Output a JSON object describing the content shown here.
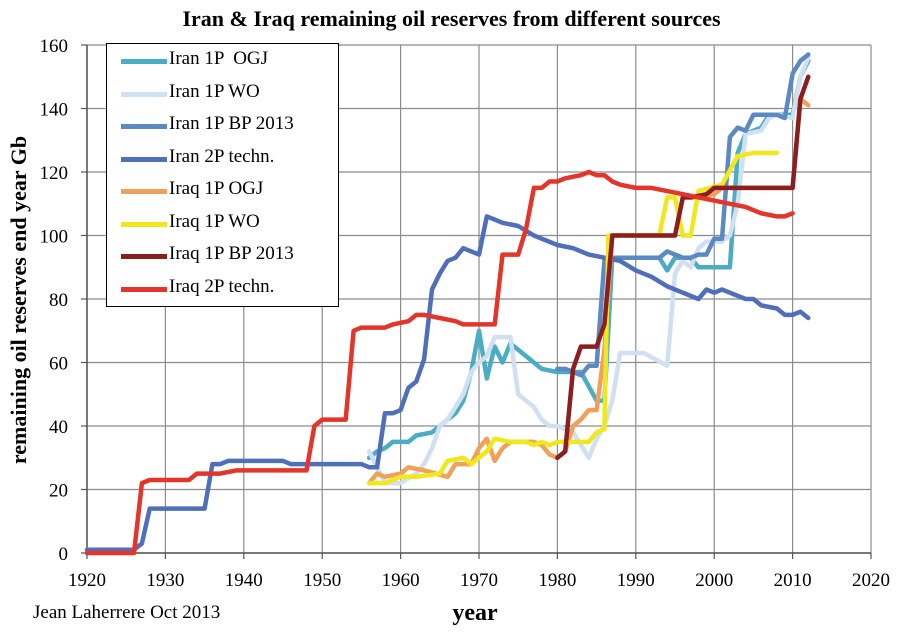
{
  "chart_data": {
    "type": "line",
    "title": "Iran & Iraq remaining oil reserves from different sources",
    "xlabel": "year",
    "ylabel": "remaining oil reserves  end year Gb",
    "xlim": [
      1920,
      2020
    ],
    "ylim": [
      0,
      160
    ],
    "x_ticks": [
      "1920",
      "1930",
      "1940",
      "1950",
      "1960",
      "1970",
      "1980",
      "1990",
      "2000",
      "2010",
      "2020"
    ],
    "y_ticks": [
      "0",
      "20",
      "40",
      "60",
      "80",
      "100",
      "120",
      "140",
      "160"
    ],
    "grid": true,
    "legend_position": "top-left",
    "series": [
      {
        "name": "Iran 1P  OGJ",
        "color": "#4bacc6",
        "points": [
          [
            1956,
            30
          ],
          [
            1957,
            32
          ],
          [
            1958,
            33
          ],
          [
            1959,
            35
          ],
          [
            1961,
            35
          ],
          [
            1962,
            37
          ],
          [
            1964,
            38
          ],
          [
            1965,
            40
          ],
          [
            1966,
            42
          ],
          [
            1967,
            44
          ],
          [
            1968,
            48
          ],
          [
            1969,
            57
          ],
          [
            1970,
            70
          ],
          [
            1971,
            55
          ],
          [
            1972,
            65
          ],
          [
            1973,
            60
          ],
          [
            1974,
            66
          ],
          [
            1976,
            62
          ],
          [
            1978,
            58
          ],
          [
            1980,
            57
          ],
          [
            1983,
            57
          ],
          [
            1985,
            48
          ],
          [
            1986,
            48
          ],
          [
            1987,
            93
          ],
          [
            1993,
            93
          ],
          [
            1994,
            89
          ],
          [
            1995,
            93
          ],
          [
            1997,
            93
          ],
          [
            1998,
            90
          ],
          [
            2002,
            90
          ],
          [
            2003,
            126
          ],
          [
            2004,
            132
          ],
          [
            2006,
            134
          ],
          [
            2007,
            138
          ],
          [
            2010,
            138
          ],
          [
            2011,
            150
          ],
          [
            2012,
            155
          ]
        ]
      },
      {
        "name": "Iran 1P WO",
        "color": "#d0e0f0",
        "points": [
          [
            1956,
            32
          ],
          [
            1958,
            22
          ],
          [
            1960,
            22
          ],
          [
            1962,
            25
          ],
          [
            1963,
            28
          ],
          [
            1964,
            33
          ],
          [
            1965,
            40
          ],
          [
            1966,
            42
          ],
          [
            1967,
            46
          ],
          [
            1968,
            50
          ],
          [
            1969,
            57
          ],
          [
            1970,
            60
          ],
          [
            1971,
            62
          ],
          [
            1972,
            68
          ],
          [
            1974,
            68
          ],
          [
            1975,
            50
          ],
          [
            1976,
            48
          ],
          [
            1977,
            46
          ],
          [
            1978,
            42
          ],
          [
            1979,
            40
          ],
          [
            1980,
            40
          ],
          [
            1982,
            38
          ],
          [
            1984,
            30
          ],
          [
            1985,
            36
          ],
          [
            1986,
            40
          ],
          [
            1987,
            48
          ],
          [
            1988,
            63
          ],
          [
            1991,
            63
          ],
          [
            1994,
            59
          ],
          [
            1995,
            88
          ],
          [
            1996,
            92
          ],
          [
            1997,
            90
          ],
          [
            1998,
            96
          ],
          [
            1999,
            98
          ],
          [
            2001,
            98
          ],
          [
            2002,
            100
          ],
          [
            2003,
            110
          ],
          [
            2004,
            132
          ],
          [
            2006,
            133
          ],
          [
            2007,
            137
          ],
          [
            2008,
            138
          ],
          [
            2010,
            137
          ],
          [
            2011,
            150
          ],
          [
            2012,
            156
          ]
        ]
      },
      {
        "name": "Iran 1P BP 2013",
        "color": "#5b8ac2",
        "points": [
          [
            1980,
            58
          ],
          [
            1981,
            58
          ],
          [
            1982,
            57
          ],
          [
            1983,
            56
          ],
          [
            1984,
            59
          ],
          [
            1985,
            59
          ],
          [
            1986,
            92
          ],
          [
            1987,
            93
          ],
          [
            1989,
            93
          ],
          [
            1990,
            93
          ],
          [
            1992,
            93
          ],
          [
            1993,
            93
          ],
          [
            1994,
            95
          ],
          [
            1995,
            94
          ],
          [
            1996,
            93
          ],
          [
            1997,
            93
          ],
          [
            1998,
            94
          ],
          [
            1999,
            94
          ],
          [
            2000,
            99
          ],
          [
            2001,
            99
          ],
          [
            2002,
            131
          ],
          [
            2003,
            134
          ],
          [
            2004,
            133
          ],
          [
            2005,
            138
          ],
          [
            2007,
            138
          ],
          [
            2008,
            138
          ],
          [
            2009,
            137
          ],
          [
            2010,
            151
          ],
          [
            2011,
            155
          ],
          [
            2012,
            157
          ]
        ]
      },
      {
        "name": "Iran 2P techn.",
        "color": "#4f6fba",
        "points": [
          [
            1920,
            1
          ],
          [
            1926,
            1
          ],
          [
            1927,
            3
          ],
          [
            1928,
            14
          ],
          [
            1935,
            14
          ],
          [
            1936,
            28
          ],
          [
            1937,
            28
          ],
          [
            1938,
            29
          ],
          [
            1945,
            29
          ],
          [
            1946,
            28
          ],
          [
            1949,
            28
          ],
          [
            1955,
            28
          ],
          [
            1956,
            27
          ],
          [
            1957,
            27
          ],
          [
            1958,
            44
          ],
          [
            1959,
            44
          ],
          [
            1960,
            45
          ],
          [
            1961,
            52
          ],
          [
            1962,
            54
          ],
          [
            1963,
            61
          ],
          [
            1964,
            83
          ],
          [
            1965,
            88
          ],
          [
            1966,
            92
          ],
          [
            1967,
            93
          ],
          [
            1968,
            96
          ],
          [
            1969,
            95
          ],
          [
            1970,
            94
          ],
          [
            1971,
            106
          ],
          [
            1972,
            105
          ],
          [
            1973,
            104
          ],
          [
            1975,
            103
          ],
          [
            1977,
            100
          ],
          [
            1978,
            99
          ],
          [
            1980,
            97
          ],
          [
            1982,
            96
          ],
          [
            1984,
            94
          ],
          [
            1986,
            93
          ],
          [
            1988,
            92
          ],
          [
            1990,
            89
          ],
          [
            1992,
            87
          ],
          [
            1994,
            84
          ],
          [
            1996,
            82
          ],
          [
            1998,
            80
          ],
          [
            1999,
            83
          ],
          [
            2000,
            82
          ],
          [
            2001,
            83
          ],
          [
            2002,
            82
          ],
          [
            2004,
            80
          ],
          [
            2005,
            80
          ],
          [
            2006,
            78
          ],
          [
            2008,
            77
          ],
          [
            2009,
            75
          ],
          [
            2010,
            75
          ],
          [
            2011,
            76
          ],
          [
            2012,
            74
          ]
        ]
      },
      {
        "name": "Iraq 1P OGJ",
        "color": "#f0a05a",
        "points": [
          [
            1956,
            22
          ],
          [
            1957,
            25
          ],
          [
            1958,
            24
          ],
          [
            1960,
            25
          ],
          [
            1961,
            27
          ],
          [
            1963,
            26
          ],
          [
            1966,
            24
          ],
          [
            1967,
            28
          ],
          [
            1969,
            28
          ],
          [
            1970,
            33
          ],
          [
            1971,
            36
          ],
          [
            1972,
            29
          ],
          [
            1973,
            33
          ],
          [
            1974,
            35
          ],
          [
            1977,
            35
          ],
          [
            1978,
            34
          ],
          [
            1979,
            31
          ],
          [
            1980,
            30
          ],
          [
            1981,
            32
          ],
          [
            1982,
            40
          ],
          [
            1983,
            42
          ],
          [
            1984,
            45
          ],
          [
            1985,
            45
          ],
          [
            1986,
            64
          ],
          [
            1987,
            100
          ],
          [
            1995,
            100
          ],
          [
            1996,
            112
          ],
          [
            1998,
            112
          ],
          [
            2000,
            113
          ],
          [
            2001,
            115
          ],
          [
            2002,
            115
          ],
          [
            2003,
            115
          ],
          [
            2005,
            115
          ],
          [
            2010,
            115
          ],
          [
            2011,
            143
          ],
          [
            2012,
            141
          ]
        ]
      },
      {
        "name": "Iraq 1P WO",
        "color": "#f0e81c",
        "points": [
          [
            1956,
            22
          ],
          [
            1958,
            22
          ],
          [
            1960,
            24
          ],
          [
            1962,
            24
          ],
          [
            1965,
            25
          ],
          [
            1966,
            29
          ],
          [
            1968,
            30
          ],
          [
            1969,
            28
          ],
          [
            1970,
            30
          ],
          [
            1971,
            32
          ],
          [
            1972,
            36
          ],
          [
            1974,
            35
          ],
          [
            1975,
            35
          ],
          [
            1976,
            35
          ],
          [
            1977,
            34
          ],
          [
            1978,
            35
          ],
          [
            1979,
            34
          ],
          [
            1980,
            35
          ],
          [
            1983,
            35
          ],
          [
            1984,
            35
          ],
          [
            1985,
            38
          ],
          [
            1986,
            39
          ],
          [
            1986.5,
            100
          ],
          [
            1987,
            100
          ],
          [
            1989,
            100
          ],
          [
            1993,
            100
          ],
          [
            1994,
            112
          ],
          [
            1995,
            112
          ],
          [
            1996,
            100
          ],
          [
            1997,
            100
          ],
          [
            1998,
            114
          ],
          [
            2001,
            116
          ],
          [
            2003,
            125
          ],
          [
            2005,
            126
          ],
          [
            2007,
            126
          ],
          [
            2008,
            126
          ]
        ]
      },
      {
        "name": "Iraq 1P BP 2013",
        "color": "#8b1e1e",
        "points": [
          [
            1980,
            30
          ],
          [
            1981,
            32
          ],
          [
            1982,
            58
          ],
          [
            1983,
            65
          ],
          [
            1985,
            65
          ],
          [
            1986,
            72
          ],
          [
            1987,
            100
          ],
          [
            1995,
            100
          ],
          [
            1996,
            112
          ],
          [
            1997,
            112
          ],
          [
            1999,
            113
          ],
          [
            2000,
            115
          ],
          [
            2001,
            115
          ],
          [
            2010,
            115
          ],
          [
            2011,
            143
          ],
          [
            2012,
            150
          ]
        ]
      },
      {
        "name": "Iraq 2P techn.",
        "color": "#e3352a",
        "points": [
          [
            1920,
            0
          ],
          [
            1926,
            0
          ],
          [
            1927,
            22
          ],
          [
            1928,
            23
          ],
          [
            1929,
            23
          ],
          [
            1933,
            23
          ],
          [
            1934,
            25
          ],
          [
            1937,
            25
          ],
          [
            1939,
            26
          ],
          [
            1941,
            26
          ],
          [
            1948,
            26
          ],
          [
            1949,
            40
          ],
          [
            1950,
            42
          ],
          [
            1953,
            42
          ],
          [
            1954,
            70
          ],
          [
            1955,
            71
          ],
          [
            1957,
            71
          ],
          [
            1958,
            71
          ],
          [
            1959,
            72
          ],
          [
            1961,
            73
          ],
          [
            1962,
            75
          ],
          [
            1963,
            75
          ],
          [
            1965,
            74
          ],
          [
            1967,
            73
          ],
          [
            1968,
            72
          ],
          [
            1970,
            72
          ],
          [
            1971,
            72
          ],
          [
            1972,
            72
          ],
          [
            1973,
            94
          ],
          [
            1975,
            94
          ],
          [
            1976,
            102
          ],
          [
            1977,
            115
          ],
          [
            1978,
            115
          ],
          [
            1979,
            117
          ],
          [
            1980,
            117
          ],
          [
            1981,
            118
          ],
          [
            1983,
            119
          ],
          [
            1984,
            120
          ],
          [
            1985,
            119
          ],
          [
            1986,
            119
          ],
          [
            1987,
            117
          ],
          [
            1988,
            116
          ],
          [
            1990,
            115
          ],
          [
            1992,
            115
          ],
          [
            1994,
            114
          ],
          [
            1996,
            113
          ],
          [
            1998,
            112
          ],
          [
            2000,
            111
          ],
          [
            2002,
            110
          ],
          [
            2004,
            109
          ],
          [
            2006,
            107
          ],
          [
            2008,
            106
          ],
          [
            2009,
            106
          ],
          [
            2010,
            107
          ]
        ]
      }
    ]
  },
  "credit": "Jean Laherrere Oct 2013"
}
